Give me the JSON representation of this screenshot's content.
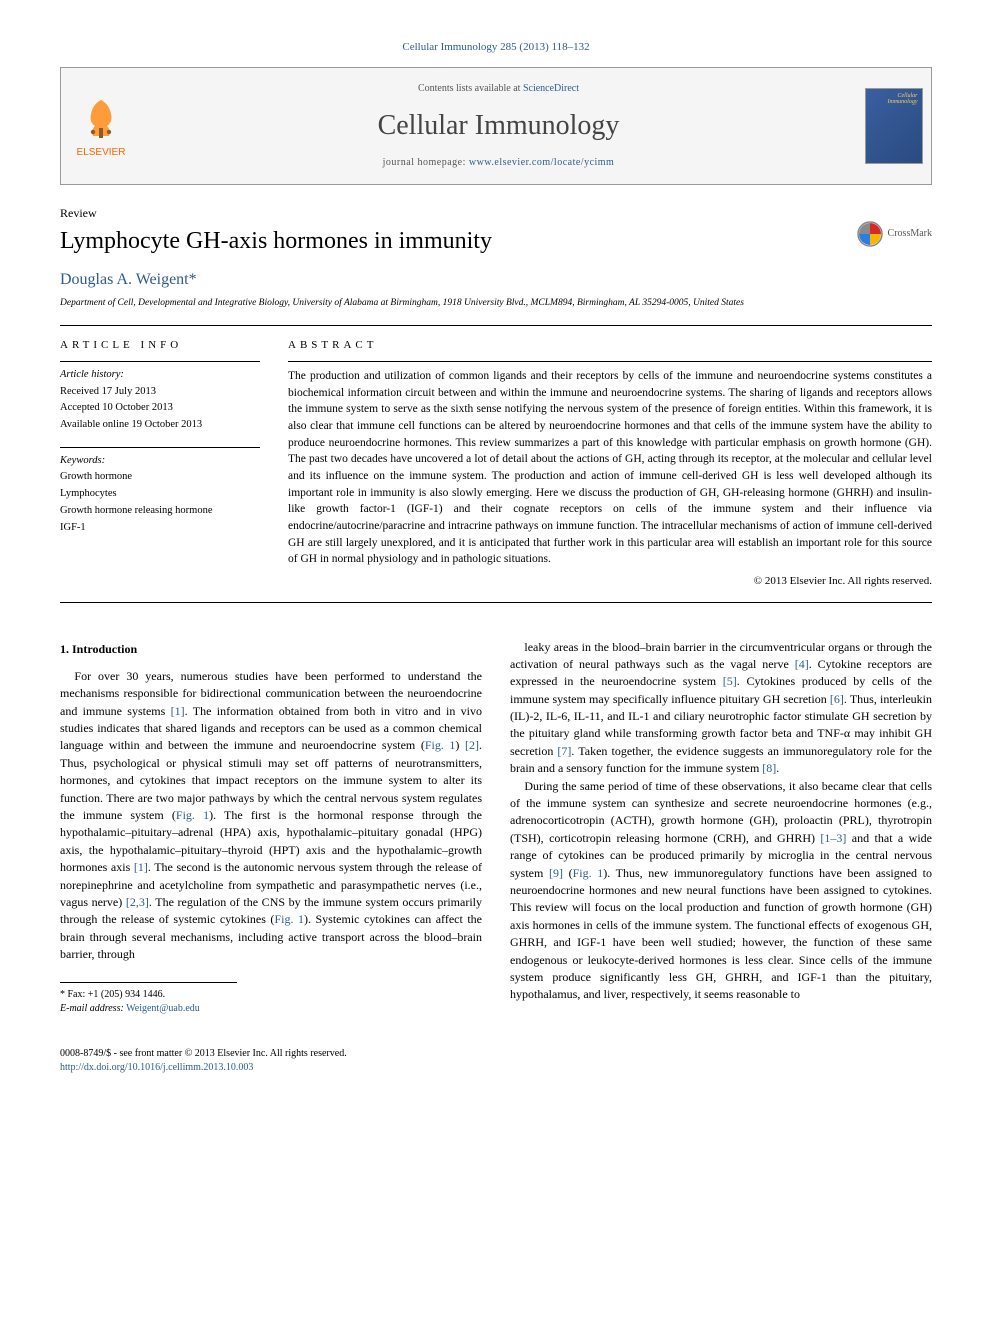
{
  "citation": "Cellular Immunology 285 (2013) 118–132",
  "header": {
    "contents_prefix": "Contents lists available at ",
    "contents_link": "ScienceDirect",
    "journal": "Cellular Immunology",
    "homepage_prefix": "journal homepage: ",
    "homepage_link": "www.elsevier.com/locate/ycimm",
    "publisher": "ELSEVIER",
    "cover_label": "Cellular Immunology"
  },
  "article": {
    "type": "Review",
    "title": "Lymphocyte GH-axis hormones in immunity",
    "author": "Douglas A. Weigent",
    "asterisk": "*",
    "affiliation": "Department of Cell, Developmental and Integrative Biology, University of Alabama at Birmingham, 1918 University Blvd., MCLM894, Birmingham, AL 35294-0005, United States",
    "crossmark": "CrossMark"
  },
  "info": {
    "heading": "ARTICLE INFO",
    "history_label": "Article history:",
    "received": "Received 17 July 2013",
    "accepted": "Accepted 10 October 2013",
    "online": "Available online 19 October 2013",
    "keywords_label": "Keywords:",
    "keywords": [
      "Growth hormone",
      "Lymphocytes",
      "Growth hormone releasing hormone",
      "IGF-1"
    ]
  },
  "abstract": {
    "heading": "ABSTRACT",
    "text": "The production and utilization of common ligands and their receptors by cells of the immune and neuroendocrine systems constitutes a biochemical information circuit between and within the immune and neuroendocrine systems. The sharing of ligands and receptors allows the immune system to serve as the sixth sense notifying the nervous system of the presence of foreign entities. Within this framework, it is also clear that immune cell functions can be altered by neuroendocrine hormones and that cells of the immune system have the ability to produce neuroendocrine hormones. This review summarizes a part of this knowledge with particular emphasis on growth hormone (GH). The past two decades have uncovered a lot of detail about the actions of GH, acting through its receptor, at the molecular and cellular level and its influence on the immune system. The production and action of immune cell-derived GH is less well developed although its important role in immunity is also slowly emerging. Here we discuss the production of GH, GH-releasing hormone (GHRH) and insulin-like growth factor-1 (IGF-1) and their cognate receptors on cells of the immune system and their influence via endocrine/autocrine/paracrine and intracrine pathways on immune function. The intracellular mechanisms of action of immune cell-derived GH are still largely unexplored, and it is anticipated that further work in this particular area will establish an important role for this source of GH in normal physiology and in pathologic situations.",
    "copyright": "© 2013 Elsevier Inc. All rights reserved."
  },
  "body": {
    "section_number": "1.",
    "section_title": "Introduction",
    "para1": "For over 30 years, numerous studies have been performed to understand the mechanisms responsible for bidirectional communication between the neuroendocrine and immune systems [1]. The information obtained from both in vitro and in vivo studies indicates that shared ligands and receptors can be used as a common chemical language within and between the immune and neuroendocrine system (Fig. 1) [2]. Thus, psychological or physical stimuli may set off patterns of neurotransmitters, hormones, and cytokines that impact receptors on the immune system to alter its function. There are two major pathways by which the central nervous system regulates the immune system (Fig. 1). The first is the hormonal response through the hypothalamic–pituitary–adrenal (HPA) axis, hypothalamic–pituitary gonadal (HPG) axis, the hypothalamic–pituitary–thyroid (HPT) axis and the hypothalamic–growth hormones axis [1]. The second is the autonomic nervous system through the release of norepinephrine and acetylcholine from sympathetic and parasympathetic nerves (i.e., vagus nerve) [2,3]. The regulation of the CNS by the immune system occurs primarily through the release of systemic cytokines (Fig. 1). Systemic cytokines can affect the brain through several mechanisms, including active transport across the blood–brain barrier, through",
    "para2": "leaky areas in the blood–brain barrier in the circumventricular organs or through the activation of neural pathways such as the vagal nerve [4]. Cytokine receptors are expressed in the neuroendocrine system [5]. Cytokines produced by cells of the immune system may specifically influence pituitary GH secretion [6]. Thus, interleukin (IL)-2, IL-6, IL-11, and IL-1 and ciliary neurotrophic factor stimulate GH secretion by the pituitary gland while transforming growth factor beta and TNF-α may inhibit GH secretion [7]. Taken together, the evidence suggests an immunoregulatory role for the brain and a sensory function for the immune system [8].",
    "para3": "During the same period of time of these observations, it also became clear that cells of the immune system can synthesize and secrete neuroendocrine hormones (e.g., adrenocorticotropin (ACTH), growth hormone (GH), proloactin (PRL), thyrotropin (TSH), corticotropin releasing hormone (CRH), and GHRH) [1–3] and that a wide range of cytokines can be produced primarily by microglia in the central nervous system [9] (Fig. 1). Thus, new immunoregulatory functions have been assigned to neuroendocrine hormones and new neural functions have been assigned to cytokines. This review will focus on the local production and function of growth hormone (GH) axis hormones in cells of the immune system. The functional effects of exogenous GH, GHRH, and IGF-1 have been well studied; however, the function of these same endogenous or leukocyte-derived hormones is less clear. Since cells of the immune system produce significantly less GH, GHRH, and IGF-1 than the pituitary, hypothalamus, and liver, respectively, it seems reasonable to"
  },
  "footnote": {
    "fax_label": "* Fax: +1 (205) 934 1446.",
    "email_label": "E-mail address:",
    "email": "Weigent@uab.edu"
  },
  "bottom": {
    "issn_line": "0008-8749/$ - see front matter © 2013 Elsevier Inc. All rights reserved.",
    "doi": "http://dx.doi.org/10.1016/j.cellimm.2013.10.003"
  },
  "colors": {
    "link": "#2e5c8a",
    "elsevier_orange": "#ff6600",
    "text": "#000000",
    "cover_bg": "#3a5fa0"
  }
}
